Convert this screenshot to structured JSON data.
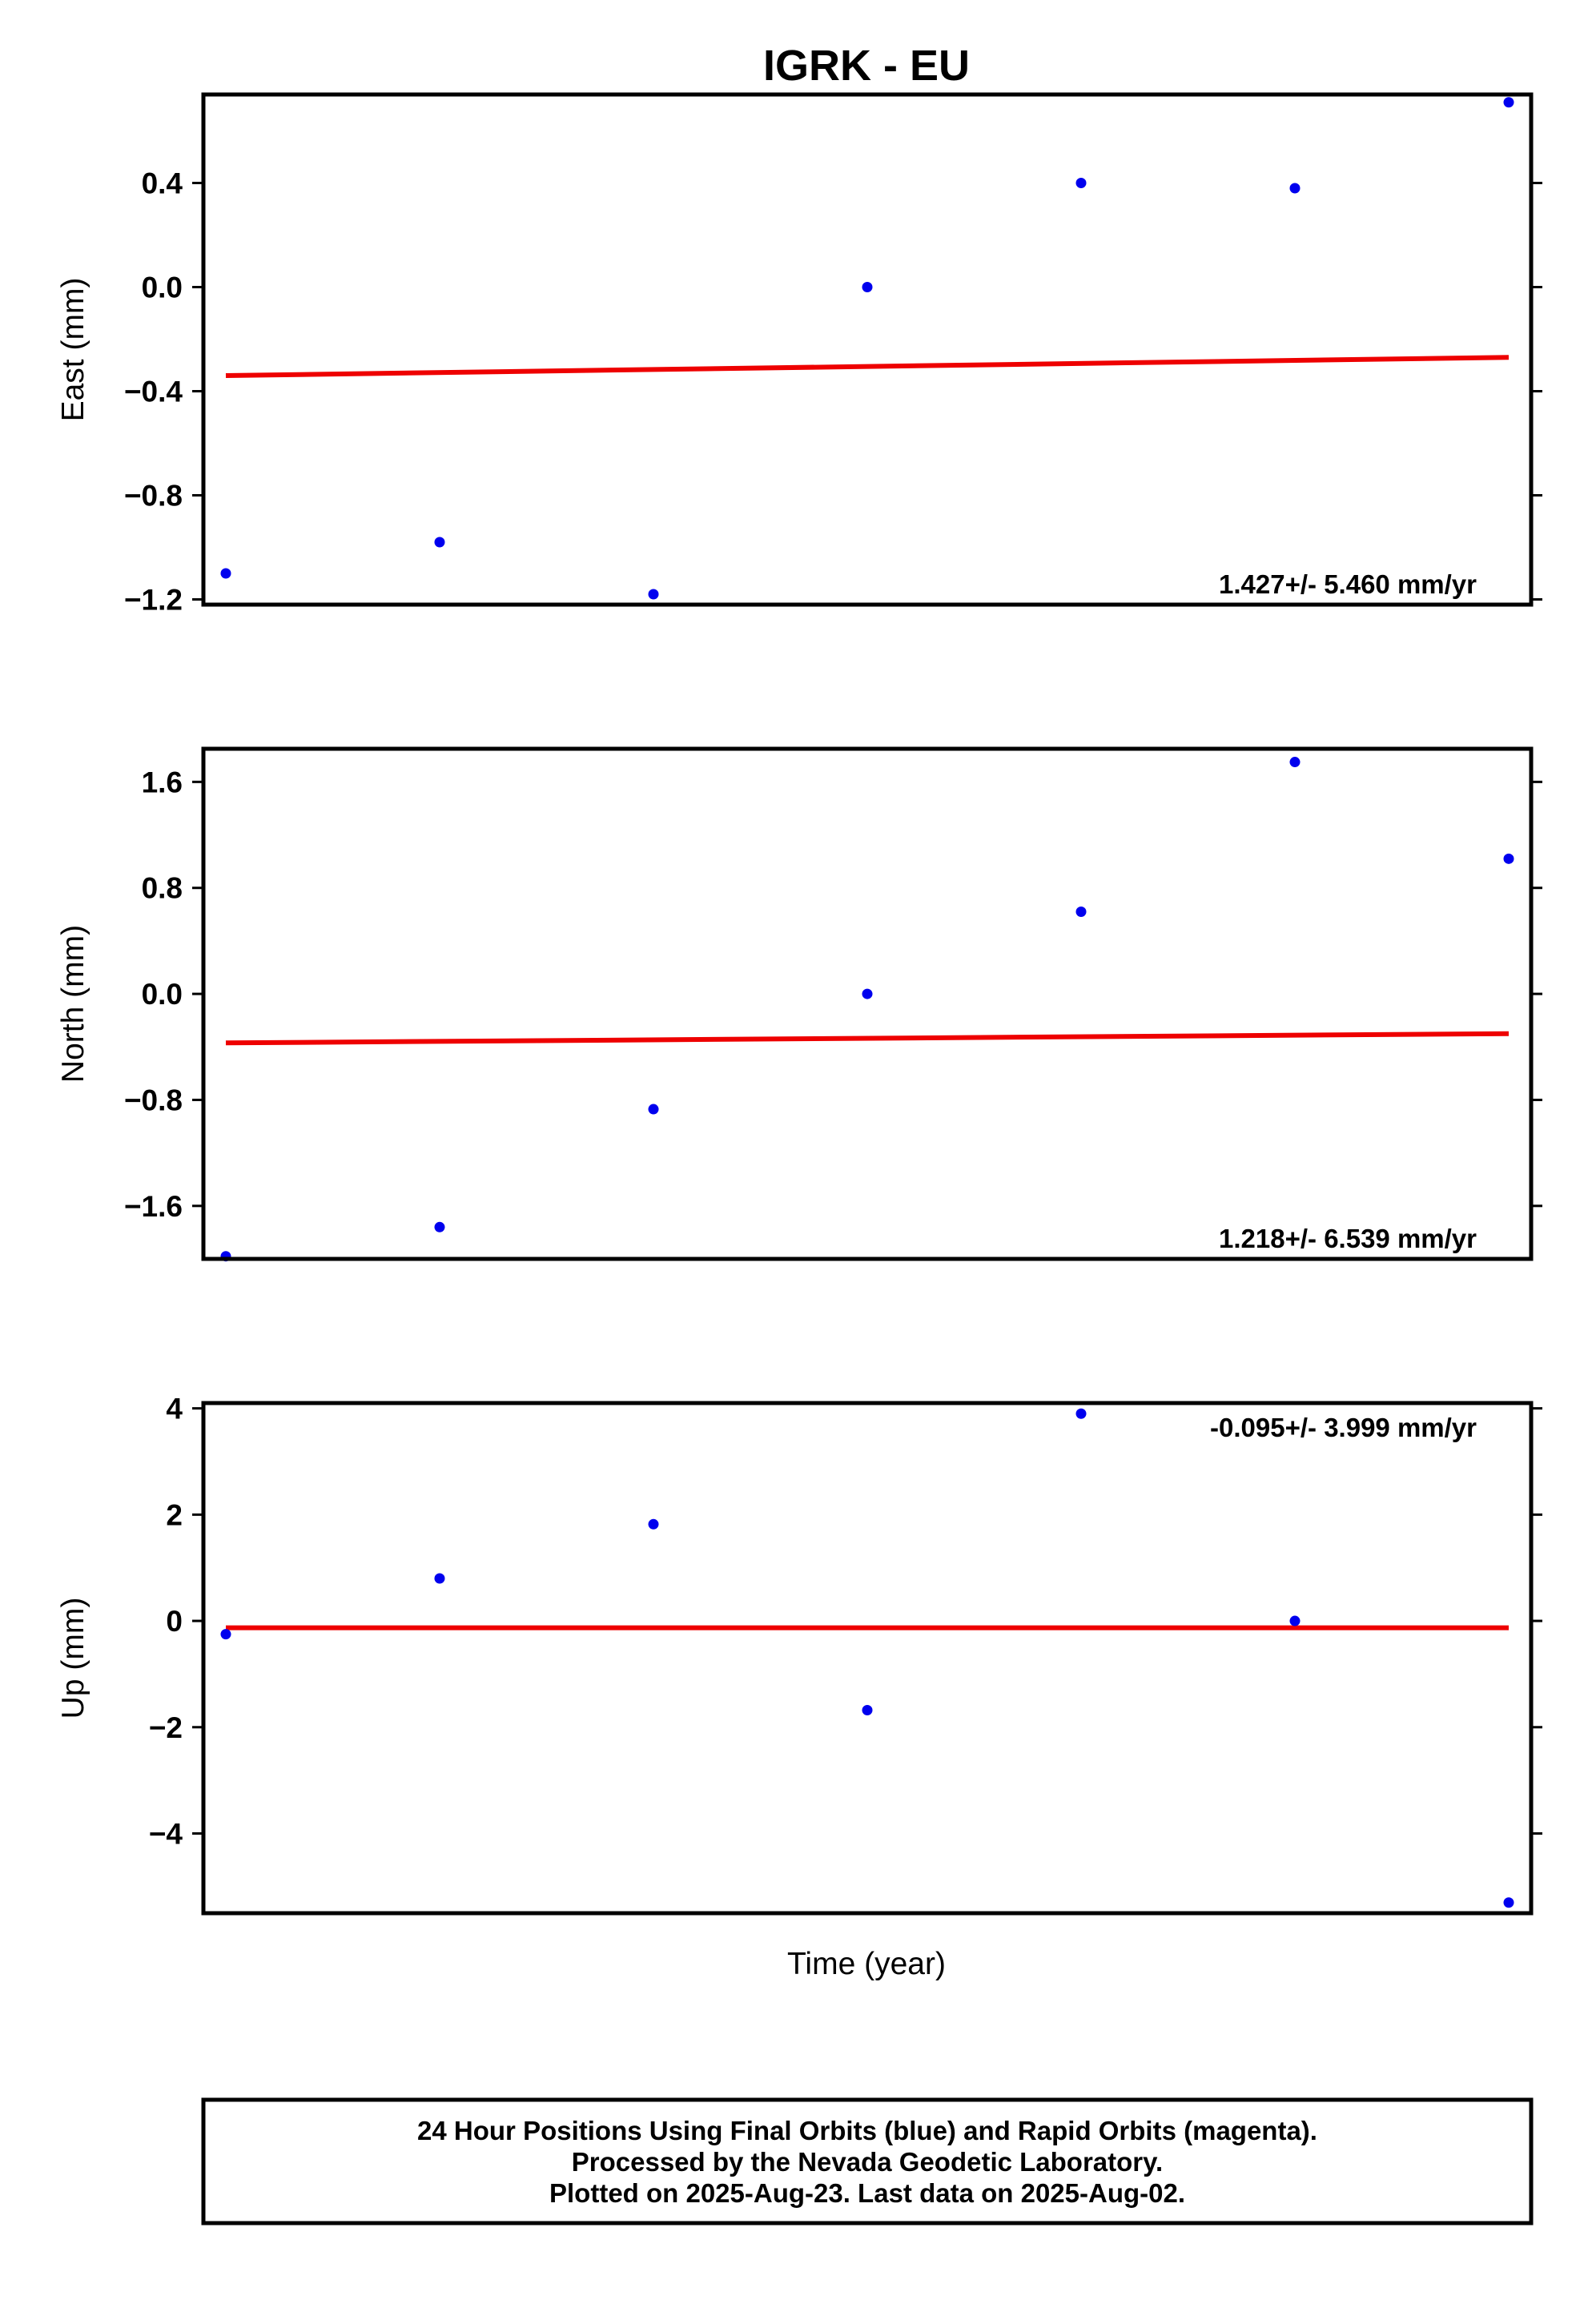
{
  "title": "IGRK - EU",
  "xlabel": "Time (year)",
  "colors": {
    "points": "#0000ee",
    "fit": "#ee0000",
    "frame": "#000000"
  },
  "chart_data": [
    {
      "type": "scatter",
      "ylabel": "East (mm)",
      "ylim": [
        -1.22,
        0.74
      ],
      "yticks": [
        -1.2,
        -0.8,
        -0.4,
        0.0,
        0.4
      ],
      "ytick_labels": [
        "−1.2",
        "−0.8",
        "−0.4",
        "0.0",
        "0.4"
      ],
      "values": [
        -1.1,
        -0.98,
        -1.18,
        0.0,
        0.4,
        0.38,
        0.71
      ],
      "trend": [
        -0.34,
        -0.27
      ],
      "rate_text": "1.427+/- 5.460 mm/yr",
      "rate_position": "bottom-right"
    },
    {
      "type": "scatter",
      "ylabel": "North (mm)",
      "ylim": [
        -2.0,
        1.85
      ],
      "yticks": [
        -1.6,
        -0.8,
        0.0,
        0.8,
        1.6
      ],
      "ytick_labels": [
        "−1.6",
        "−0.8",
        "0.0",
        "0.8",
        "1.6"
      ],
      "values": [
        -1.98,
        -1.76,
        -0.87,
        0.0,
        0.62,
        1.75,
        1.02
      ],
      "trend": [
        -0.37,
        -0.3
      ],
      "rate_text": "1.218+/- 6.539 mm/yr",
      "rate_position": "bottom-right"
    },
    {
      "type": "scatter",
      "ylabel": "Up (mm)",
      "ylim": [
        -5.5,
        4.1
      ],
      "yticks": [
        -4,
        -2,
        0,
        2,
        4
      ],
      "ytick_labels": [
        "−4",
        "−2",
        "0",
        "2",
        "4"
      ],
      "values": [
        -0.25,
        0.8,
        1.82,
        -1.68,
        3.9,
        0.0,
        -5.3
      ],
      "trend": [
        -0.13,
        -0.13
      ],
      "rate_text": "-0.095+/- 3.999 mm/yr",
      "rate_position": "top-right"
    }
  ],
  "footer": {
    "line1": "24 Hour Positions Using Final Orbits (blue) and Rapid Orbits (magenta).",
    "line2": "Processed by the Nevada Geodetic Laboratory.",
    "line3": "Plotted on 2025-Aug-23. Last data on 2025-Aug-02."
  }
}
